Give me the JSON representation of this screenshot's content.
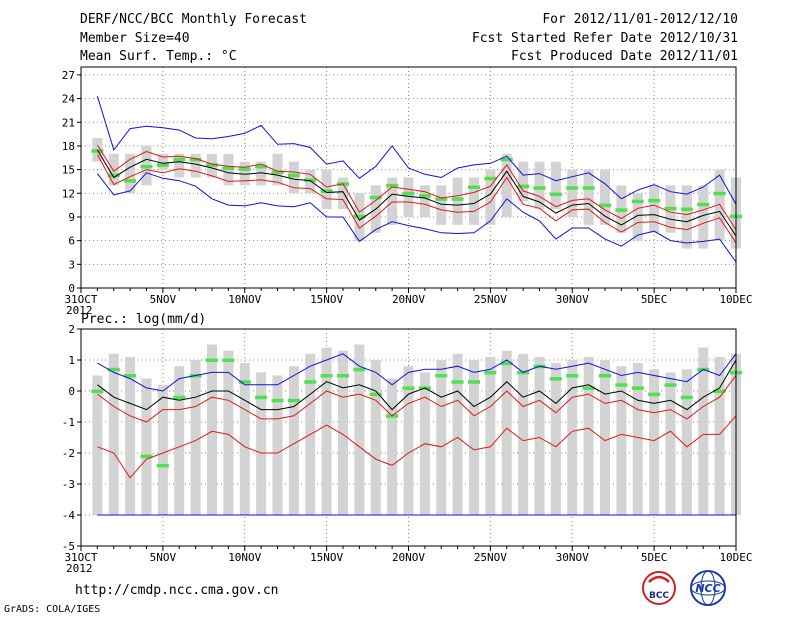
{
  "header": {
    "title": "DERF/NCC/BCC Monthly Forecast",
    "member": "Member Size=40",
    "variable": "Mean Surf. Temp.: °C",
    "period": "For 2012/11/01-2012/12/10",
    "started": "Fcst Started Refer Date 2012/10/31",
    "produced": "Fcst Produced Date 2012/11/01"
  },
  "footer": {
    "url": "http://cmdp.ncc.cma.gov.cn",
    "credit": "GrADS: COLA/IGES",
    "logo_left": "BCC",
    "logo_right": "NCC"
  },
  "colors": {
    "box": "#d3d3d3",
    "median": "#000000",
    "inner": "#e01818",
    "outer": "#1010e0",
    "obs": "#50e050",
    "frame": "#000000"
  },
  "chart_data": [
    {
      "type": "line",
      "title": "Mean Surf. Temp.: °C",
      "ylim": [
        0,
        28
      ],
      "yticks": [
        0,
        3,
        6,
        9,
        12,
        15,
        18,
        21,
        24,
        27
      ],
      "xticks": [
        {
          "day": 0,
          "label": "31OCT",
          "sub": "2012"
        },
        {
          "day": 5,
          "label": "5NOV"
        },
        {
          "day": 10,
          "label": "10NOV"
        },
        {
          "day": 15,
          "label": "15NOV"
        },
        {
          "day": 20,
          "label": "20NOV"
        },
        {
          "day": 25,
          "label": "25NOV"
        },
        {
          "day": 30,
          "label": "30NOV"
        },
        {
          "day": 35,
          "label": "5DEC"
        },
        {
          "day": 40,
          "label": "10DEC"
        }
      ],
      "days": [
        1,
        2,
        3,
        4,
        5,
        6,
        7,
        8,
        9,
        10,
        11,
        12,
        13,
        14,
        15,
        16,
        17,
        18,
        19,
        20,
        21,
        22,
        23,
        24,
        25,
        26,
        27,
        28,
        29,
        30,
        31,
        32,
        33,
        34,
        35,
        36,
        37,
        38,
        39,
        40
      ],
      "box_low": [
        16,
        13,
        12,
        13,
        15,
        14,
        14,
        14,
        13,
        13,
        13,
        13,
        12,
        12,
        10,
        10,
        6,
        7,
        8,
        9,
        9,
        8,
        8,
        8,
        8,
        9,
        11,
        10,
        10,
        9,
        8,
        8,
        7,
        6,
        7,
        7,
        5,
        5,
        6,
        5
      ],
      "box_high": [
        19,
        17,
        17,
        18,
        17,
        17,
        17,
        17,
        17,
        16,
        16,
        17,
        16,
        15,
        15,
        14,
        12,
        13,
        14,
        14,
        13,
        13,
        14,
        14,
        15,
        17,
        16,
        16,
        16,
        15,
        15,
        15,
        13,
        12,
        13,
        13,
        13,
        13,
        15,
        14
      ],
      "median": [
        17.5,
        14.0,
        15.3,
        16.3,
        15.8,
        16.0,
        15.7,
        15.2,
        14.6,
        14.4,
        14.6,
        14.3,
        13.8,
        13.6,
        12.1,
        12.2,
        8.6,
        10.0,
        11.9,
        11.6,
        11.4,
        10.6,
        10.5,
        10.7,
        11.9,
        14.8,
        11.6,
        10.9,
        9.5,
        10.5,
        10.7,
        9.1,
        8.0,
        9.2,
        9.3,
        8.7,
        8.4,
        9.2,
        9.7,
        6.6
      ],
      "inner_high": [
        18.1,
        14.8,
        16.3,
        17.3,
        16.6,
        16.7,
        16.4,
        15.7,
        15.4,
        15.3,
        15.7,
        14.8,
        14.7,
        14.4,
        12.8,
        13.2,
        9.6,
        11.1,
        12.8,
        12.5,
        12.2,
        11.4,
        11.7,
        12.1,
        12.9,
        15.6,
        12.3,
        11.6,
        10.3,
        11.1,
        11.3,
        9.9,
        8.8,
        10.1,
        10.5,
        9.6,
        9.3,
        9.9,
        10.6,
        7.4
      ],
      "inner_low": [
        16.9,
        13.1,
        14.1,
        15.0,
        14.6,
        15.1,
        14.8,
        14.2,
        13.5,
        13.6,
        13.7,
        13.4,
        12.7,
        12.6,
        11.3,
        11.2,
        7.6,
        9.1,
        10.9,
        10.9,
        10.6,
        9.9,
        9.6,
        9.7,
        10.9,
        14.0,
        10.6,
        10.1,
        8.5,
        9.9,
        10.0,
        8.3,
        7.1,
        8.3,
        8.4,
        7.7,
        7.4,
        8.2,
        8.9,
        5.7
      ],
      "outer_high": [
        24.3,
        17.5,
        20.2,
        20.5,
        20.3,
        20.0,
        19.0,
        18.9,
        19.2,
        19.6,
        20.6,
        18.2,
        18.3,
        17.8,
        15.7,
        16.1,
        13.9,
        15.4,
        18.0,
        15.2,
        14.4,
        14.0,
        15.2,
        15.6,
        15.8,
        16.7,
        14.3,
        14.5,
        13.6,
        14.1,
        14.6,
        13.2,
        11.3,
        12.4,
        13.1,
        12.2,
        11.9,
        12.8,
        14.3,
        10.6
      ],
      "outer_low": [
        14.5,
        11.8,
        12.3,
        14.6,
        13.9,
        13.6,
        12.9,
        11.3,
        10.5,
        10.4,
        10.8,
        10.4,
        10.3,
        10.8,
        9.0,
        9.0,
        5.9,
        7.4,
        8.4,
        7.9,
        7.5,
        7.0,
        6.9,
        7.0,
        8.5,
        11.3,
        9.6,
        8.5,
        6.2,
        7.6,
        7.6,
        6.2,
        5.3,
        6.7,
        7.2,
        6.0,
        5.7,
        5.9,
        6.2,
        3.3
      ],
      "observed": [
        17.4,
        14.3,
        13.6,
        15.4,
        15.6,
        16.3,
        16.3,
        15.6,
        15.2,
        15.1,
        15.4,
        14.7,
        14.3,
        13.7,
        12.3,
        13.2,
        9.1,
        11.5,
        13.0,
        12.0,
        11.7,
        11.3,
        11.3,
        12.8,
        13.9,
        16.3,
        12.9,
        12.7,
        11.9,
        12.7,
        12.7,
        10.5,
        9.9,
        11.0,
        11.1,
        10.1,
        10.0,
        10.6,
        12.0,
        9.1
      ]
    },
    {
      "type": "line",
      "title": "Prec.: log(mm/d)",
      "ylim": [
        -5,
        2
      ],
      "yticks": [
        -5,
        -4,
        -3,
        -2,
        -1,
        0,
        1,
        2
      ],
      "xticks": [
        {
          "day": 0,
          "label": "31OCT",
          "sub": "2012"
        },
        {
          "day": 5,
          "label": "5NOV"
        },
        {
          "day": 10,
          "label": "10NOV"
        },
        {
          "day": 15,
          "label": "15NOV"
        },
        {
          "day": 20,
          "label": "20NOV"
        },
        {
          "day": 25,
          "label": "25NOV"
        },
        {
          "day": 30,
          "label": "30NOV"
        },
        {
          "day": 35,
          "label": "5DEC"
        },
        {
          "day": 40,
          "label": "10DEC"
        }
      ],
      "days": [
        1,
        2,
        3,
        4,
        5,
        6,
        7,
        8,
        9,
        10,
        11,
        12,
        13,
        14,
        15,
        16,
        17,
        18,
        19,
        20,
        21,
        22,
        23,
        24,
        25,
        26,
        27,
        28,
        29,
        30,
        31,
        32,
        33,
        34,
        35,
        36,
        37,
        38,
        39,
        40
      ],
      "box_low": [
        -4,
        -4,
        -4,
        -4,
        -4,
        -4,
        -4,
        -4,
        -4,
        -4,
        -4,
        -4,
        -4,
        -4,
        -4,
        -4,
        -4,
        -4,
        -4,
        -4,
        -4,
        -4,
        -4,
        -4,
        -4,
        -4,
        -4,
        -4,
        -4,
        -4,
        -4,
        -4,
        -4,
        -4,
        -4,
        -4,
        -4,
        -4,
        -4,
        -4
      ],
      "box_high": [
        0.5,
        1.2,
        1.1,
        0.4,
        0.2,
        0.8,
        1.0,
        1.5,
        1.3,
        0.9,
        0.6,
        0.5,
        0.8,
        1.2,
        1.4,
        1.3,
        1.5,
        1.0,
        0.4,
        0.8,
        0.6,
        1.0,
        1.2,
        1.0,
        1.1,
        1.3,
        1.2,
        1.1,
        0.9,
        1.0,
        1.1,
        1.0,
        0.8,
        0.9,
        0.7,
        0.6,
        0.7,
        1.4,
        1.1,
        1.2
      ],
      "median": [
        0.2,
        -0.2,
        -0.4,
        -0.6,
        -0.2,
        -0.3,
        -0.2,
        0.0,
        0.0,
        -0.3,
        -0.6,
        -0.6,
        -0.5,
        -0.1,
        0.3,
        0.1,
        0.2,
        0.0,
        -0.6,
        -0.1,
        0.1,
        -0.2,
        0.0,
        -0.5,
        -0.2,
        0.3,
        -0.2,
        0.0,
        -0.4,
        0.1,
        0.2,
        -0.1,
        0.0,
        -0.3,
        -0.4,
        -0.3,
        -0.6,
        -0.2,
        0.1,
        1.0
      ],
      "inner_high": [
        -0.1,
        -0.5,
        -0.8,
        -1.0,
        -0.6,
        -0.6,
        -0.5,
        -0.2,
        -0.3,
        -0.6,
        -0.9,
        -0.9,
        -0.8,
        -0.4,
        0.0,
        -0.2,
        -0.1,
        -0.3,
        -0.8,
        -0.4,
        -0.2,
        -0.5,
        -0.3,
        -0.8,
        -0.5,
        0.0,
        -0.5,
        -0.3,
        -0.7,
        -0.2,
        -0.1,
        -0.4,
        -0.3,
        -0.6,
        -0.7,
        -0.6,
        -0.9,
        -0.5,
        -0.2,
        0.5
      ],
      "inner_low": [
        -1.8,
        -2.0,
        -2.8,
        -2.2,
        -2.0,
        -1.8,
        -1.6,
        -1.3,
        -1.4,
        -1.8,
        -2.0,
        -2.0,
        -1.7,
        -1.4,
        -1.1,
        -1.4,
        -1.8,
        -2.2,
        -2.4,
        -2.0,
        -1.7,
        -1.8,
        -1.5,
        -1.9,
        -1.8,
        -1.2,
        -1.6,
        -1.5,
        -1.8,
        -1.3,
        -1.2,
        -1.6,
        -1.4,
        -1.5,
        -1.6,
        -1.3,
        -1.8,
        -1.4,
        -1.4,
        -0.8
      ],
      "outer_high": [
        0.9,
        0.6,
        0.4,
        0.1,
        0.0,
        0.4,
        0.5,
        0.6,
        0.6,
        0.2,
        0.2,
        0.2,
        0.5,
        0.8,
        1.0,
        1.2,
        0.8,
        0.6,
        0.2,
        0.6,
        0.7,
        0.7,
        0.8,
        0.6,
        0.7,
        1.0,
        0.6,
        0.8,
        0.7,
        0.8,
        0.9,
        0.7,
        0.5,
        0.6,
        0.5,
        0.4,
        0.3,
        0.7,
        0.5,
        1.2
      ],
      "outer_low": [
        -4,
        -4,
        -4,
        -4,
        -4,
        -4,
        -4,
        -4,
        -4,
        -4,
        -4,
        -4,
        -4,
        -4,
        -4,
        -4,
        -4,
        -4,
        -4,
        -4,
        -4,
        -4,
        -4,
        -4,
        -4,
        -4,
        -4,
        -4,
        -4,
        -4,
        -4,
        -4,
        -4,
        -4,
        -4,
        -4,
        -4,
        -4,
        -4,
        -4
      ],
      "observed": [
        0.0,
        0.7,
        0.5,
        -2.1,
        -2.4,
        -0.2,
        0.5,
        1.0,
        1.0,
        0.3,
        -0.2,
        -0.3,
        -0.3,
        0.3,
        0.5,
        0.5,
        0.7,
        -0.1,
        -0.8,
        0.1,
        0.1,
        0.5,
        0.3,
        0.3,
        0.6,
        0.9,
        0.6,
        0.8,
        0.4,
        0.5,
        0.1,
        0.5,
        0.2,
        0.1,
        -0.1,
        0.2,
        -0.2,
        0.7,
        0.0,
        0.6
      ]
    }
  ]
}
